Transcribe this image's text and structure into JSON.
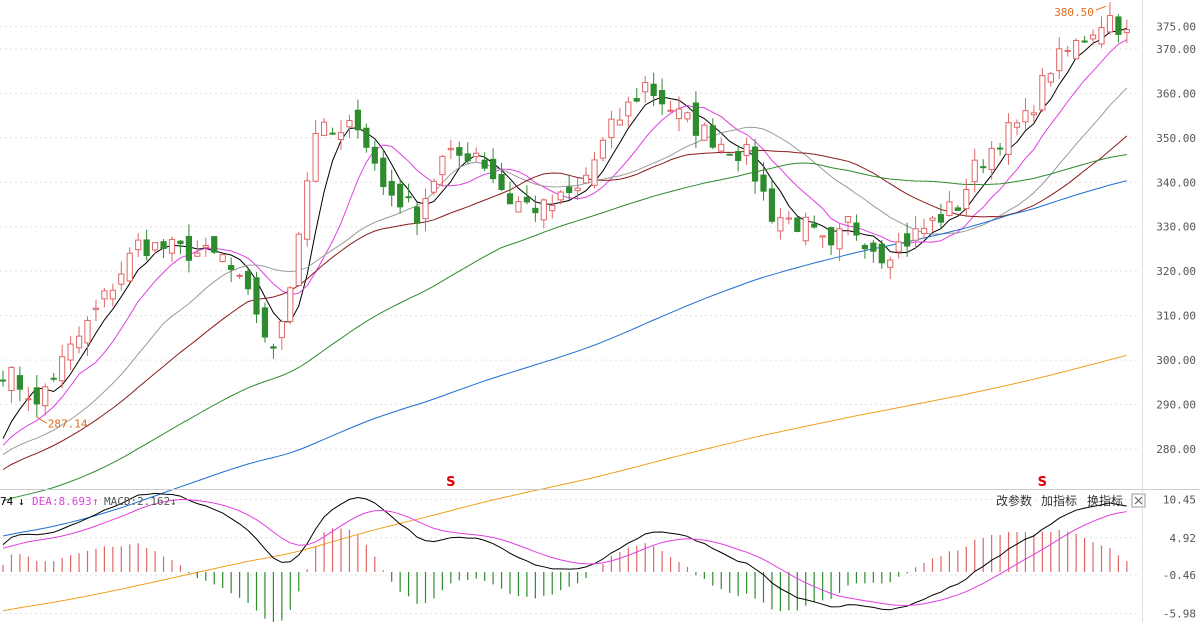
{
  "colors": {
    "up": "#e06666",
    "down": "#2e8b2e",
    "ma5": "#000000",
    "ma10": "#e040e0",
    "ma20": "#9a9a9a",
    "ma30": "#8b1a1a",
    "ma60": "#2e8b2e",
    "ma120": "#1e6fd0",
    "ma250": "#f0a020",
    "dif": "#000000",
    "dea": "#e040e0",
    "grid": "#e2e2e2",
    "annotation": "#e06a1c",
    "marker": "#e00000"
  },
  "annotations": {
    "low_label": "287.14",
    "high_label": "380.50"
  },
  "markers": [
    {
      "text": "S",
      "day": 53
    },
    {
      "text": "S",
      "day": 123
    }
  ],
  "legend": {
    "dif_suffix": "74",
    "dif_arrow": "↓",
    "dea_text": "DEA:8.693",
    "dea_arrow": "↑",
    "macd_text": "MACD:2.162",
    "macd_arrow": "↓"
  },
  "toolbar": {
    "change_params": "改参数",
    "add_indicator": "加指标",
    "switch_indicator": "换指标",
    "close_icon": "close-icon"
  },
  "chart_data": [
    {
      "type": "candlestick",
      "title": "",
      "yticks": [
        "280.00",
        "290.00",
        "300.00",
        "310.00",
        "320.00",
        "330.00",
        "340.00",
        "350.00",
        "360.00",
        "370.00",
        "375.00"
      ],
      "ylim": [
        271,
        381
      ],
      "days": 134,
      "low": {
        "value": 287.14,
        "day": 4
      },
      "high": {
        "value": 380.5,
        "day": 131
      },
      "close_keypoints": [
        [
          0,
          298
        ],
        [
          4,
          291
        ],
        [
          10,
          308
        ],
        [
          16,
          326
        ],
        [
          20,
          325
        ],
        [
          26,
          323
        ],
        [
          30,
          311
        ],
        [
          32,
          301
        ],
        [
          34,
          318
        ],
        [
          37,
          352
        ],
        [
          40,
          350
        ],
        [
          42,
          354
        ],
        [
          45,
          339
        ],
        [
          49,
          333
        ],
        [
          52,
          345
        ],
        [
          56,
          347
        ],
        [
          60,
          336
        ],
        [
          64,
          334
        ],
        [
          68,
          338
        ],
        [
          72,
          352
        ],
        [
          76,
          362
        ],
        [
          80,
          355
        ],
        [
          84,
          350
        ],
        [
          88,
          346
        ],
        [
          91,
          333
        ],
        [
          95,
          330
        ],
        [
          98,
          324
        ],
        [
          100,
          331
        ],
        [
          104,
          324
        ],
        [
          107,
          327
        ],
        [
          110,
          331
        ],
        [
          113,
          335
        ],
        [
          115,
          343
        ],
        [
          118,
          350
        ],
        [
          121,
          354
        ],
        [
          124,
          366
        ],
        [
          127,
          371
        ],
        [
          131,
          378
        ],
        [
          133,
          373
        ]
      ],
      "moving_averages": [
        {
          "name": "MA5",
          "period": 5
        },
        {
          "name": "MA10",
          "period": 10
        },
        {
          "name": "MA20",
          "period": 20
        },
        {
          "name": "MA30",
          "period": 30
        },
        {
          "name": "MA60",
          "period": 60
        },
        {
          "name": "MA120",
          "period": 120
        },
        {
          "name": "MA250",
          "period": 250
        }
      ]
    },
    {
      "type": "bar",
      "title": "MACD",
      "yticks": [
        "10.45",
        "4.92",
        "-0.46",
        "-5.98"
      ],
      "ylim": [
        -7.2,
        11.8
      ],
      "series": [
        {
          "name": "DIF"
        },
        {
          "name": "DEA",
          "last": 8.693
        },
        {
          "name": "MACD",
          "last": 2.162
        }
      ]
    }
  ]
}
